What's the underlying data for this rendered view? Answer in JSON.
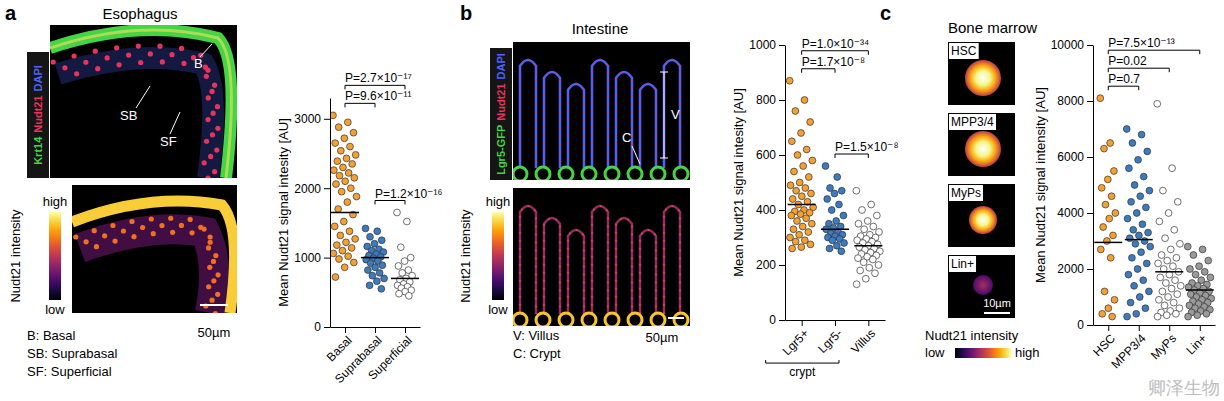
{
  "panels": [
    {
      "letter": "a",
      "title": "Esophagus",
      "stains": [
        {
          "text": "Krt14",
          "color": "#44d444"
        },
        {
          "text": "Nudt21",
          "color": "#e8335a"
        },
        {
          "text": "DAPI",
          "color": "#4b63ff"
        }
      ],
      "image_labels": [
        "B",
        "SB",
        "SF"
      ],
      "colorbar": {
        "title": "Nudt21 intensity",
        "high": "high",
        "low": "low"
      },
      "scale_bar": "50µm",
      "key": [
        "B: Basal",
        "SB: Suprabasal",
        "SF: Superficial"
      ]
    },
    {
      "letter": "b",
      "title": "Intestine",
      "stains": [
        {
          "text": "Lgr5-GFP",
          "color": "#44d444"
        },
        {
          "text": "Nudt21",
          "color": "#e8335a"
        },
        {
          "text": "DAPI",
          "color": "#4b63ff"
        }
      ],
      "image_labels": [
        "V",
        "C"
      ],
      "colorbar": {
        "title": "Nudt21 intensity",
        "high": "high",
        "low": "low"
      },
      "scale_bar": "50µm",
      "key": [
        "V: Villus",
        "C: Crypt"
      ]
    },
    {
      "letter": "c",
      "title": "Bone marrow",
      "image_labels": [
        "HSC",
        "MPP3/4",
        "MyPs",
        "Lin+"
      ],
      "colorbar": {
        "title": "Nudt21 intensity",
        "high": "high",
        "low": "low"
      },
      "scale_bar": "10µm"
    }
  ],
  "watermark": "卿泽生物",
  "chart_data": [
    {
      "type": "strip",
      "y_label": "Mean Nudt21 signal intesity [AU]",
      "categories": [
        "Basal",
        "Suprabasal",
        "Superficial"
      ],
      "colors": [
        "#f5a031",
        "#3a7cbf",
        "#ffffff"
      ],
      "values": [
        [
          3050,
          2950,
          2880,
          2800,
          2720,
          2650,
          2600,
          2540,
          2480,
          2430,
          2390,
          2350,
          2300,
          2260,
          2220,
          2180,
          2150,
          2100,
          2060,
          2000,
          1950,
          1880,
          1800,
          1700,
          1620,
          1520,
          1450,
          1380,
          1320,
          1270,
          1220,
          1180,
          1140,
          1100,
          1060,
          1020,
          980,
          930,
          860,
          720
        ],
        [
          1420,
          1380,
          1300,
          1250,
          1200,
          1160,
          1120,
          1100,
          1080,
          1050,
          1030,
          1010,
          990,
          970,
          950,
          920,
          890,
          860,
          820,
          780,
          740,
          700,
          660,
          600,
          550
        ],
        [
          1650,
          1520,
          1150,
          1000,
          950,
          880,
          820,
          780,
          740,
          700,
          680,
          650,
          620,
          600,
          580,
          560,
          530,
          510,
          480,
          450
        ]
      ],
      "means": [
        1650,
        1000,
        700
      ],
      "ylim": [
        0,
        3300
      ],
      "yticks": [
        0,
        1000,
        2000,
        3000
      ],
      "annotations": [
        {
          "text": "P=2.7×10⁻¹⁷",
          "from": 0,
          "to": 2
        },
        {
          "text": "P=9.6×10⁻¹¹",
          "from": 0,
          "to": 1
        },
        {
          "text": "P=1.2×10⁻¹⁶",
          "from": 1,
          "to": 2
        }
      ]
    },
    {
      "type": "strip",
      "y_label": "Mean Nudt21 signal intesity [AU]",
      "categories": [
        "Lgr5+",
        "Lgr5-",
        "Villus"
      ],
      "colors": [
        "#f5a031",
        "#3a7cbf",
        "#ffffff"
      ],
      "values": [
        [
          870,
          800,
          760,
          720,
          680,
          650,
          620,
          600,
          580,
          560,
          540,
          520,
          500,
          490,
          480,
          470,
          460,
          450,
          440,
          430,
          420,
          410,
          400,
          395,
          390,
          385,
          380,
          370,
          360,
          350,
          340,
          330,
          320,
          310,
          300,
          290,
          285,
          275,
          265,
          260
        ],
        [
          560,
          520,
          480,
          470,
          460,
          440,
          420,
          400,
          380,
          360,
          350,
          340,
          335,
          330,
          320,
          315,
          310,
          305,
          300,
          295,
          290,
          280,
          270,
          260,
          250
        ],
        [
          470,
          420,
          400,
          380,
          360,
          350,
          340,
          330,
          320,
          310,
          305,
          300,
          295,
          290,
          285,
          280,
          275,
          270,
          265,
          260,
          255,
          250,
          245,
          240,
          235,
          230,
          225,
          220,
          210,
          200,
          190,
          180,
          170,
          150,
          130
        ]
      ],
      "means": [
        420,
        330,
        270
      ],
      "ylim": [
        0,
        1000
      ],
      "yticks": [
        0,
        200,
        400,
        600,
        800,
        1000
      ],
      "annotations": [
        {
          "text": "P=1.0×10⁻³⁴",
          "from": 0,
          "to": 2
        },
        {
          "text": "P=1.7×10⁻⁸",
          "from": 0,
          "to": 1
        },
        {
          "text": "P=1.5×10⁻⁸",
          "from": 1,
          "to": 2
        }
      ],
      "category_groups": [
        {
          "label": "crypt",
          "from": 0,
          "to": 1
        }
      ]
    },
    {
      "type": "strip",
      "y_label": "Mean Nudt21 signal intensity [AU]",
      "categories": [
        "HSC",
        "MPP3/4",
        "MyPs",
        "Lin+"
      ],
      "colors": [
        "#f5a031",
        "#3a7cbf",
        "#ffffff",
        "#9a9a9a"
      ],
      "values": [
        [
          8100,
          6500,
          6300,
          5500,
          5200,
          4900,
          4600,
          4300,
          4000,
          3800,
          3500,
          3200,
          3000,
          2700,
          2400,
          1200,
          900,
          600,
          400,
          300
        ],
        [
          7000,
          6800,
          6500,
          6200,
          5900,
          5600,
          5300,
          5000,
          4800,
          4600,
          4400,
          4200,
          4000,
          3800,
          3600,
          3400,
          3300,
          3200,
          3100,
          3000,
          2900,
          2800,
          2600,
          2400,
          2200,
          2000,
          1800,
          1600,
          1400,
          1200,
          1000,
          800,
          600,
          400,
          300
        ],
        [
          7900,
          5600,
          4800,
          4400,
          4000,
          3700,
          3400,
          3100,
          2900,
          2700,
          2500,
          2400,
          2300,
          2200,
          2100,
          2000,
          1900,
          1800,
          1700,
          1600,
          1500,
          1400,
          1300,
          1200,
          1100,
          1000,
          900,
          800,
          700,
          600,
          500,
          450,
          400,
          350,
          300
        ],
        [
          2800,
          2700,
          2500,
          2300,
          2100,
          2000,
          1900,
          1800,
          1700,
          1600,
          1500,
          1450,
          1400,
          1350,
          1300,
          1250,
          1200,
          1150,
          1100,
          1050,
          1000,
          950,
          900,
          850,
          800,
          750,
          700,
          650,
          600,
          550,
          500,
          450,
          400,
          350,
          300
        ]
      ],
      "means": [
        2950,
        3050,
        1900,
        1250
      ],
      "ylim": [
        0,
        10000
      ],
      "yticks": [
        0,
        2000,
        4000,
        6000,
        8000,
        10000
      ],
      "annotations": [
        {
          "text": "P=7.5×10⁻¹³",
          "from": 0,
          "to": 3
        },
        {
          "text": "P=0.02",
          "from": 0,
          "to": 2
        },
        {
          "text": "P=0.7",
          "from": 0,
          "to": 1
        }
      ]
    }
  ]
}
